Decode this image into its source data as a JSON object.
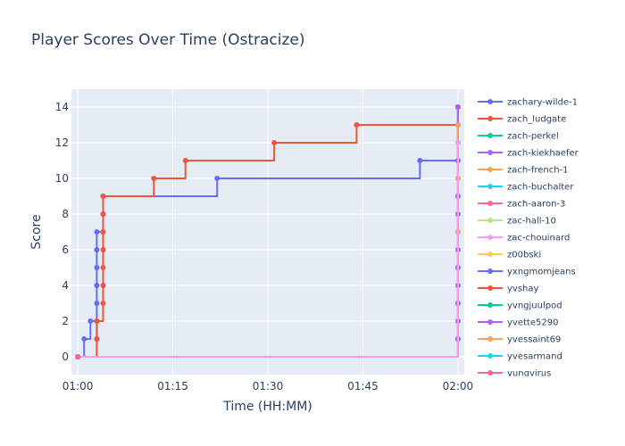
{
  "chart_data": {
    "type": "line",
    "line_shape": "step",
    "title": "Player Scores Over Time (Ostracize)",
    "xlabel": "Time (HH:MM)",
    "ylabel": "Score",
    "x_ticks": [
      "01:00",
      "01:15",
      "01:30",
      "01:45",
      "02:00"
    ],
    "y_ticks": [
      0,
      2,
      4,
      6,
      8,
      10,
      12,
      14
    ],
    "xlim": [
      "00:59",
      "02:01"
    ],
    "ylim": [
      -1,
      15
    ],
    "grid": true,
    "legend_position": "right",
    "series": [
      {
        "name": "zachary-wilde-1",
        "color": "#636efa",
        "points": [
          [
            "01:00",
            0
          ],
          [
            "01:01",
            1
          ],
          [
            "01:02",
            2
          ],
          [
            "01:03",
            1
          ],
          [
            "01:03",
            2
          ],
          [
            "01:03",
            3
          ],
          [
            "01:03",
            4
          ],
          [
            "01:03",
            5
          ],
          [
            "01:03",
            6
          ],
          [
            "01:03",
            7
          ],
          [
            "01:04",
            8
          ],
          [
            "01:04",
            9
          ],
          [
            "01:22",
            10
          ],
          [
            "01:54",
            11
          ],
          [
            "02:00",
            14
          ]
        ]
      },
      {
        "name": "zach_ludgate",
        "color": "#ef553b",
        "points": [
          [
            "01:00",
            0
          ],
          [
            "01:03",
            1
          ],
          [
            "01:03",
            2
          ],
          [
            "01:04",
            3
          ],
          [
            "01:04",
            4
          ],
          [
            "01:04",
            5
          ],
          [
            "01:04",
            6
          ],
          [
            "01:04",
            7
          ],
          [
            "01:04",
            8
          ],
          [
            "01:04",
            9
          ],
          [
            "01:12",
            10
          ],
          [
            "01:17",
            11
          ],
          [
            "01:31",
            12
          ],
          [
            "01:44",
            13
          ],
          [
            "02:00",
            14
          ]
        ]
      },
      {
        "name": "zach-perkel",
        "color": "#00cc96",
        "points": [
          [
            "01:00",
            0
          ],
          [
            "02:00",
            1
          ],
          [
            "02:00",
            2
          ],
          [
            "02:00",
            3
          ],
          [
            "02:00",
            4
          ],
          [
            "02:00",
            5
          ],
          [
            "02:00",
            6
          ],
          [
            "02:00",
            7
          ],
          [
            "02:00",
            8
          ],
          [
            "02:00",
            9
          ],
          [
            "02:00",
            10
          ],
          [
            "02:00",
            11
          ],
          [
            "02:00",
            12
          ],
          [
            "02:00",
            13
          ],
          [
            "02:00",
            14
          ]
        ]
      },
      {
        "name": "zach-kiekhaefer",
        "color": "#ab63fa",
        "points": [
          [
            "01:00",
            0
          ],
          [
            "02:00",
            1
          ],
          [
            "02:00",
            2
          ],
          [
            "02:00",
            3
          ],
          [
            "02:00",
            4
          ],
          [
            "02:00",
            5
          ],
          [
            "02:00",
            6
          ],
          [
            "02:00",
            7
          ],
          [
            "02:00",
            8
          ],
          [
            "02:00",
            9
          ],
          [
            "02:00",
            10
          ],
          [
            "02:00",
            11
          ],
          [
            "02:00",
            12
          ],
          [
            "02:00",
            13
          ],
          [
            "02:00",
            14
          ]
        ]
      },
      {
        "name": "zach-french-1",
        "color": "#ffa15a",
        "points": [
          [
            "01:00",
            0
          ],
          [
            "02:00",
            7
          ],
          [
            "02:00",
            10
          ],
          [
            "02:00",
            13
          ]
        ]
      },
      {
        "name": "zach-buchalter",
        "color": "#19d3f3",
        "points": [
          [
            "01:00",
            0
          ]
        ]
      },
      {
        "name": "zach-aaron-3",
        "color": "#ff6692",
        "points": [
          [
            "01:00",
            0
          ]
        ]
      },
      {
        "name": "zac-hall-10",
        "color": "#b6e880",
        "points": [
          [
            "01:00",
            0
          ]
        ]
      },
      {
        "name": "zac-chouinard",
        "color": "#ff97ff",
        "points": [
          [
            "01:00",
            0
          ],
          [
            "02:00",
            12
          ]
        ]
      },
      {
        "name": "z00bski",
        "color": "#fecb52",
        "points": [
          [
            "01:00",
            0
          ]
        ]
      },
      {
        "name": "yxngmomjeans",
        "color": "#636efa",
        "points": [
          [
            "01:00",
            0
          ]
        ]
      },
      {
        "name": "yvshay",
        "color": "#ef553b",
        "points": [
          [
            "01:00",
            0
          ]
        ]
      },
      {
        "name": "yvngjuulpod",
        "color": "#00cc96",
        "points": [
          [
            "01:00",
            0
          ]
        ]
      },
      {
        "name": "yvette5290",
        "color": "#ab63fa",
        "points": [
          [
            "01:00",
            0
          ]
        ]
      },
      {
        "name": "yvessaint69",
        "color": "#ffa15a",
        "points": [
          [
            "01:00",
            0
          ]
        ]
      },
      {
        "name": "yvesarmand",
        "color": "#19d3f3",
        "points": [
          [
            "01:00",
            0
          ]
        ]
      },
      {
        "name": "yungvirus",
        "color": "#ff6692",
        "points": [
          [
            "01:00",
            0
          ]
        ]
      }
    ]
  }
}
